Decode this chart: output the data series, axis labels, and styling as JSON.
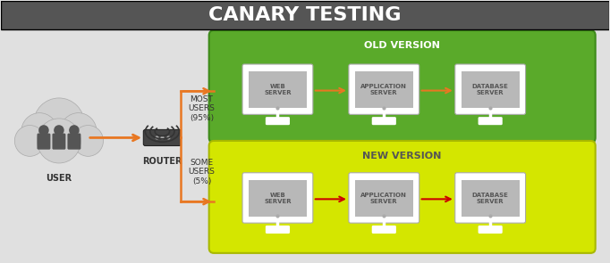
{
  "title": "CANARY TESTING",
  "title_fontsize": 16,
  "bg_color": "#e0e0e0",
  "header_color": "#555555",
  "green_box_color": "#5aaa2a",
  "yellow_box_color": "#d4e600",
  "monitor_bg": "#b0b0b0",
  "monitor_screen": "#cccccc",
  "arrow_color": "#e87722",
  "user_color": "#555555",
  "router_color": "#333333",
  "text_color_dark": "#333333",
  "text_color_white": "#ffffff",
  "old_version_label": "OLD VERSION",
  "new_version_label": "NEW VERSION",
  "user_label": "USER",
  "router_label": "ROUTER",
  "most_users_label": "MOST\nUSERS\n(95%)",
  "some_users_label": "SOME\nUSERS\n(5%)",
  "server_labels": [
    "WEB\nSERVER",
    "APPLICATION\nSERVER",
    "DATABASE\nSERVER"
  ]
}
